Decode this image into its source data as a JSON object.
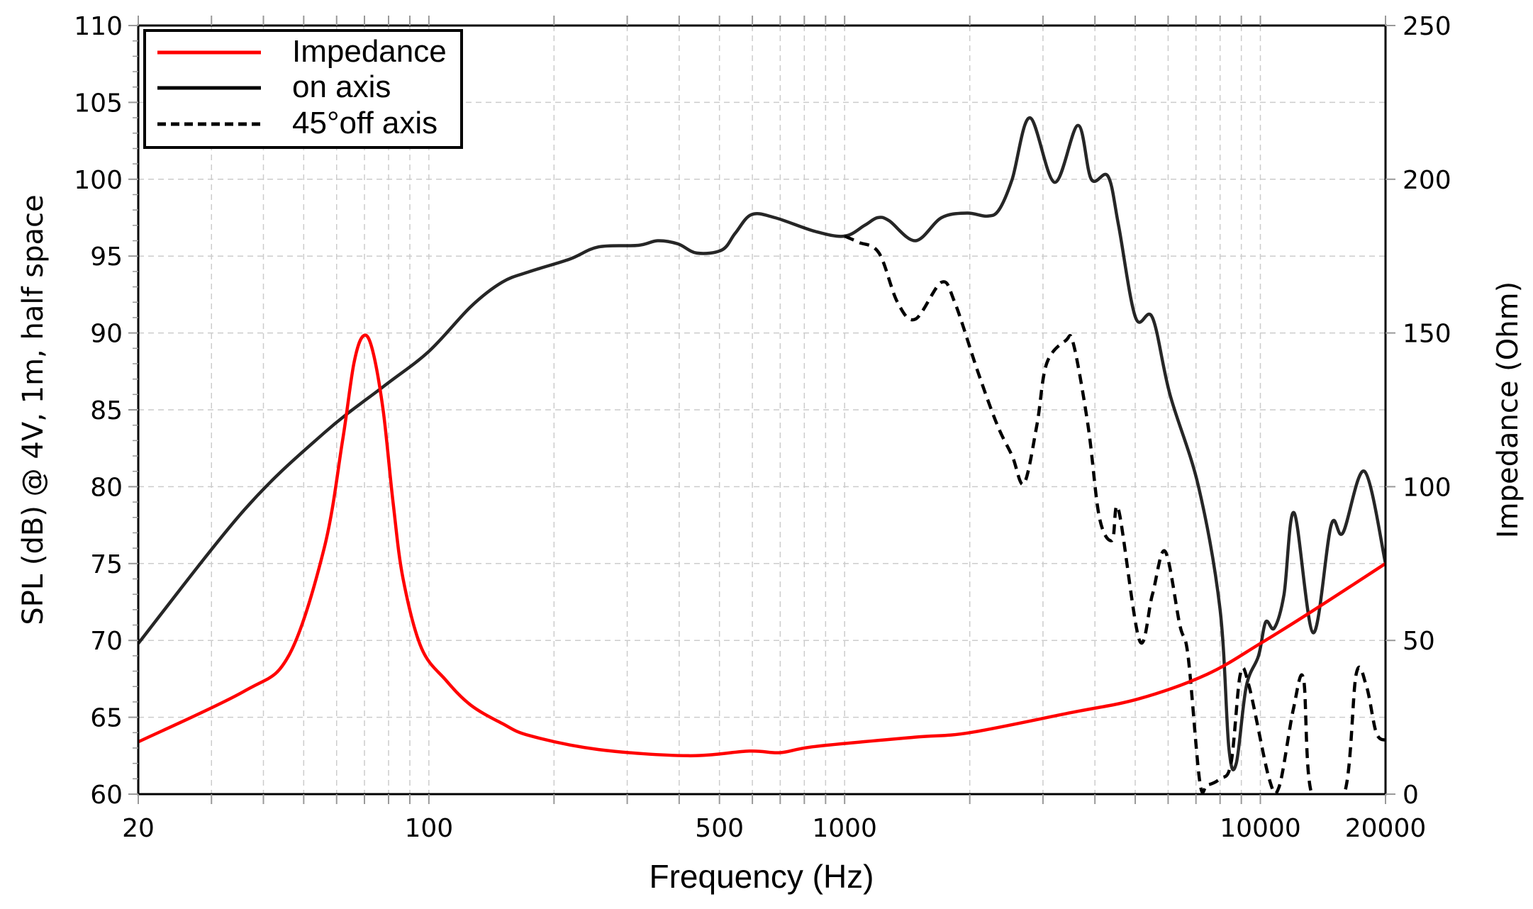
{
  "chart_data": {
    "type": "line",
    "xlabel": "Frequency (Hz)",
    "ylabel": "SPL (dB) @ 4V, 1m, half space",
    "y2label": "Impedance (Ohm)",
    "xscale": "log",
    "xlim": [
      20,
      20000
    ],
    "ylim": [
      60,
      110
    ],
    "y2lim": [
      0,
      250
    ],
    "x_tick_labels": [
      "20",
      "100",
      "500",
      "1000",
      "10000",
      "20000"
    ],
    "x_ticks": [
      20,
      100,
      500,
      1000,
      10000,
      20000
    ],
    "y_ticks": [
      60,
      65,
      70,
      75,
      80,
      85,
      90,
      95,
      100,
      105,
      110
    ],
    "y2_ticks": [
      0,
      50,
      100,
      150,
      200,
      250
    ],
    "grid": true,
    "legend_position": "top-left",
    "colors": {
      "impedance": "#ff0000",
      "on_axis": "#000000",
      "off_axis": "#000000"
    },
    "series": [
      {
        "name": "Impedance",
        "axis": "right",
        "style": "solid",
        "x": [
          20,
          36,
          46,
          56,
          62,
          66,
          69.5,
          73,
          77.6,
          82,
          86.7,
          96,
          110,
          126,
          150,
          175,
          256,
          420,
          590,
          700,
          850,
          1470,
          2000,
          3500,
          5100,
          7450,
          10000,
          13500,
          20000
        ],
        "y": [
          17,
          33.5,
          45,
          80,
          115,
          140,
          149,
          145,
          125,
          95,
          70,
          47.5,
          37,
          29,
          23,
          19,
          14.5,
          12.5,
          14,
          13.5,
          15.5,
          18.5,
          20,
          26.5,
          31,
          39,
          49,
          60,
          75
        ]
      },
      {
        "name": "on axis",
        "axis": "left",
        "style": "solid",
        "x": [
          20,
          36,
          56,
          77.6,
          100,
          126,
          150,
          175,
          218,
          256,
          319,
          355,
          397,
          441,
          507,
          546,
          597,
          680,
          851,
          1000,
          1117,
          1200,
          1280,
          1480,
          1710,
          1970,
          2200,
          2350,
          2530,
          2790,
          3200,
          3640,
          3920,
          4300,
          4560,
          5010,
          5500,
          6060,
          7100,
          8000,
          8400,
          8750,
          9250,
          9900,
          10300,
          10800,
          11400,
          12060,
          13400,
          14800,
          15800,
          17800,
          20000
        ],
        "y": [
          69.8,
          78.5,
          83.5,
          86.5,
          88.8,
          91.7,
          93.3,
          94,
          94.8,
          95.6,
          95.7,
          96,
          95.8,
          95.2,
          95.4,
          96.5,
          97.7,
          97.5,
          96.6,
          96.3,
          97,
          97.5,
          97.3,
          96,
          97.5,
          97.8,
          97.6,
          98,
          100,
          104,
          99.8,
          103.5,
          100,
          100.2,
          97,
          91,
          91,
          86,
          80,
          72,
          63,
          62,
          67,
          69,
          71.2,
          70.8,
          73,
          78.3,
          70.5,
          77.5,
          77,
          81,
          75
        ]
      },
      {
        "name": "45°off axis",
        "axis": "left",
        "style": "dashed",
        "x": [
          1000,
          1080,
          1210,
          1340,
          1480,
          1710,
          1840,
          2090,
          2330,
          2530,
          2700,
          2900,
          3060,
          3400,
          3550,
          3850,
          4100,
          4400,
          4560,
          5120,
          5500,
          5900,
          6400,
          6700,
          7150,
          7450,
          8000,
          8500,
          8950,
          9400,
          10500,
          11100,
          12000,
          12700,
          13300,
          15900,
          17000,
          18000,
          19000,
          20000
        ],
        "y": [
          96.3,
          95.9,
          95.2,
          92,
          90.9,
          93.3,
          92,
          87.5,
          84,
          82,
          80.2,
          84,
          88,
          89.5,
          89.3,
          84,
          78,
          76.5,
          78.5,
          70,
          73,
          75.8,
          71,
          69,
          60.8,
          60.6,
          61,
          62,
          67.8,
          67,
          61,
          60.5,
          65.5,
          67.5,
          60,
          60,
          67.8,
          67,
          64,
          63.5
        ]
      }
    ]
  }
}
